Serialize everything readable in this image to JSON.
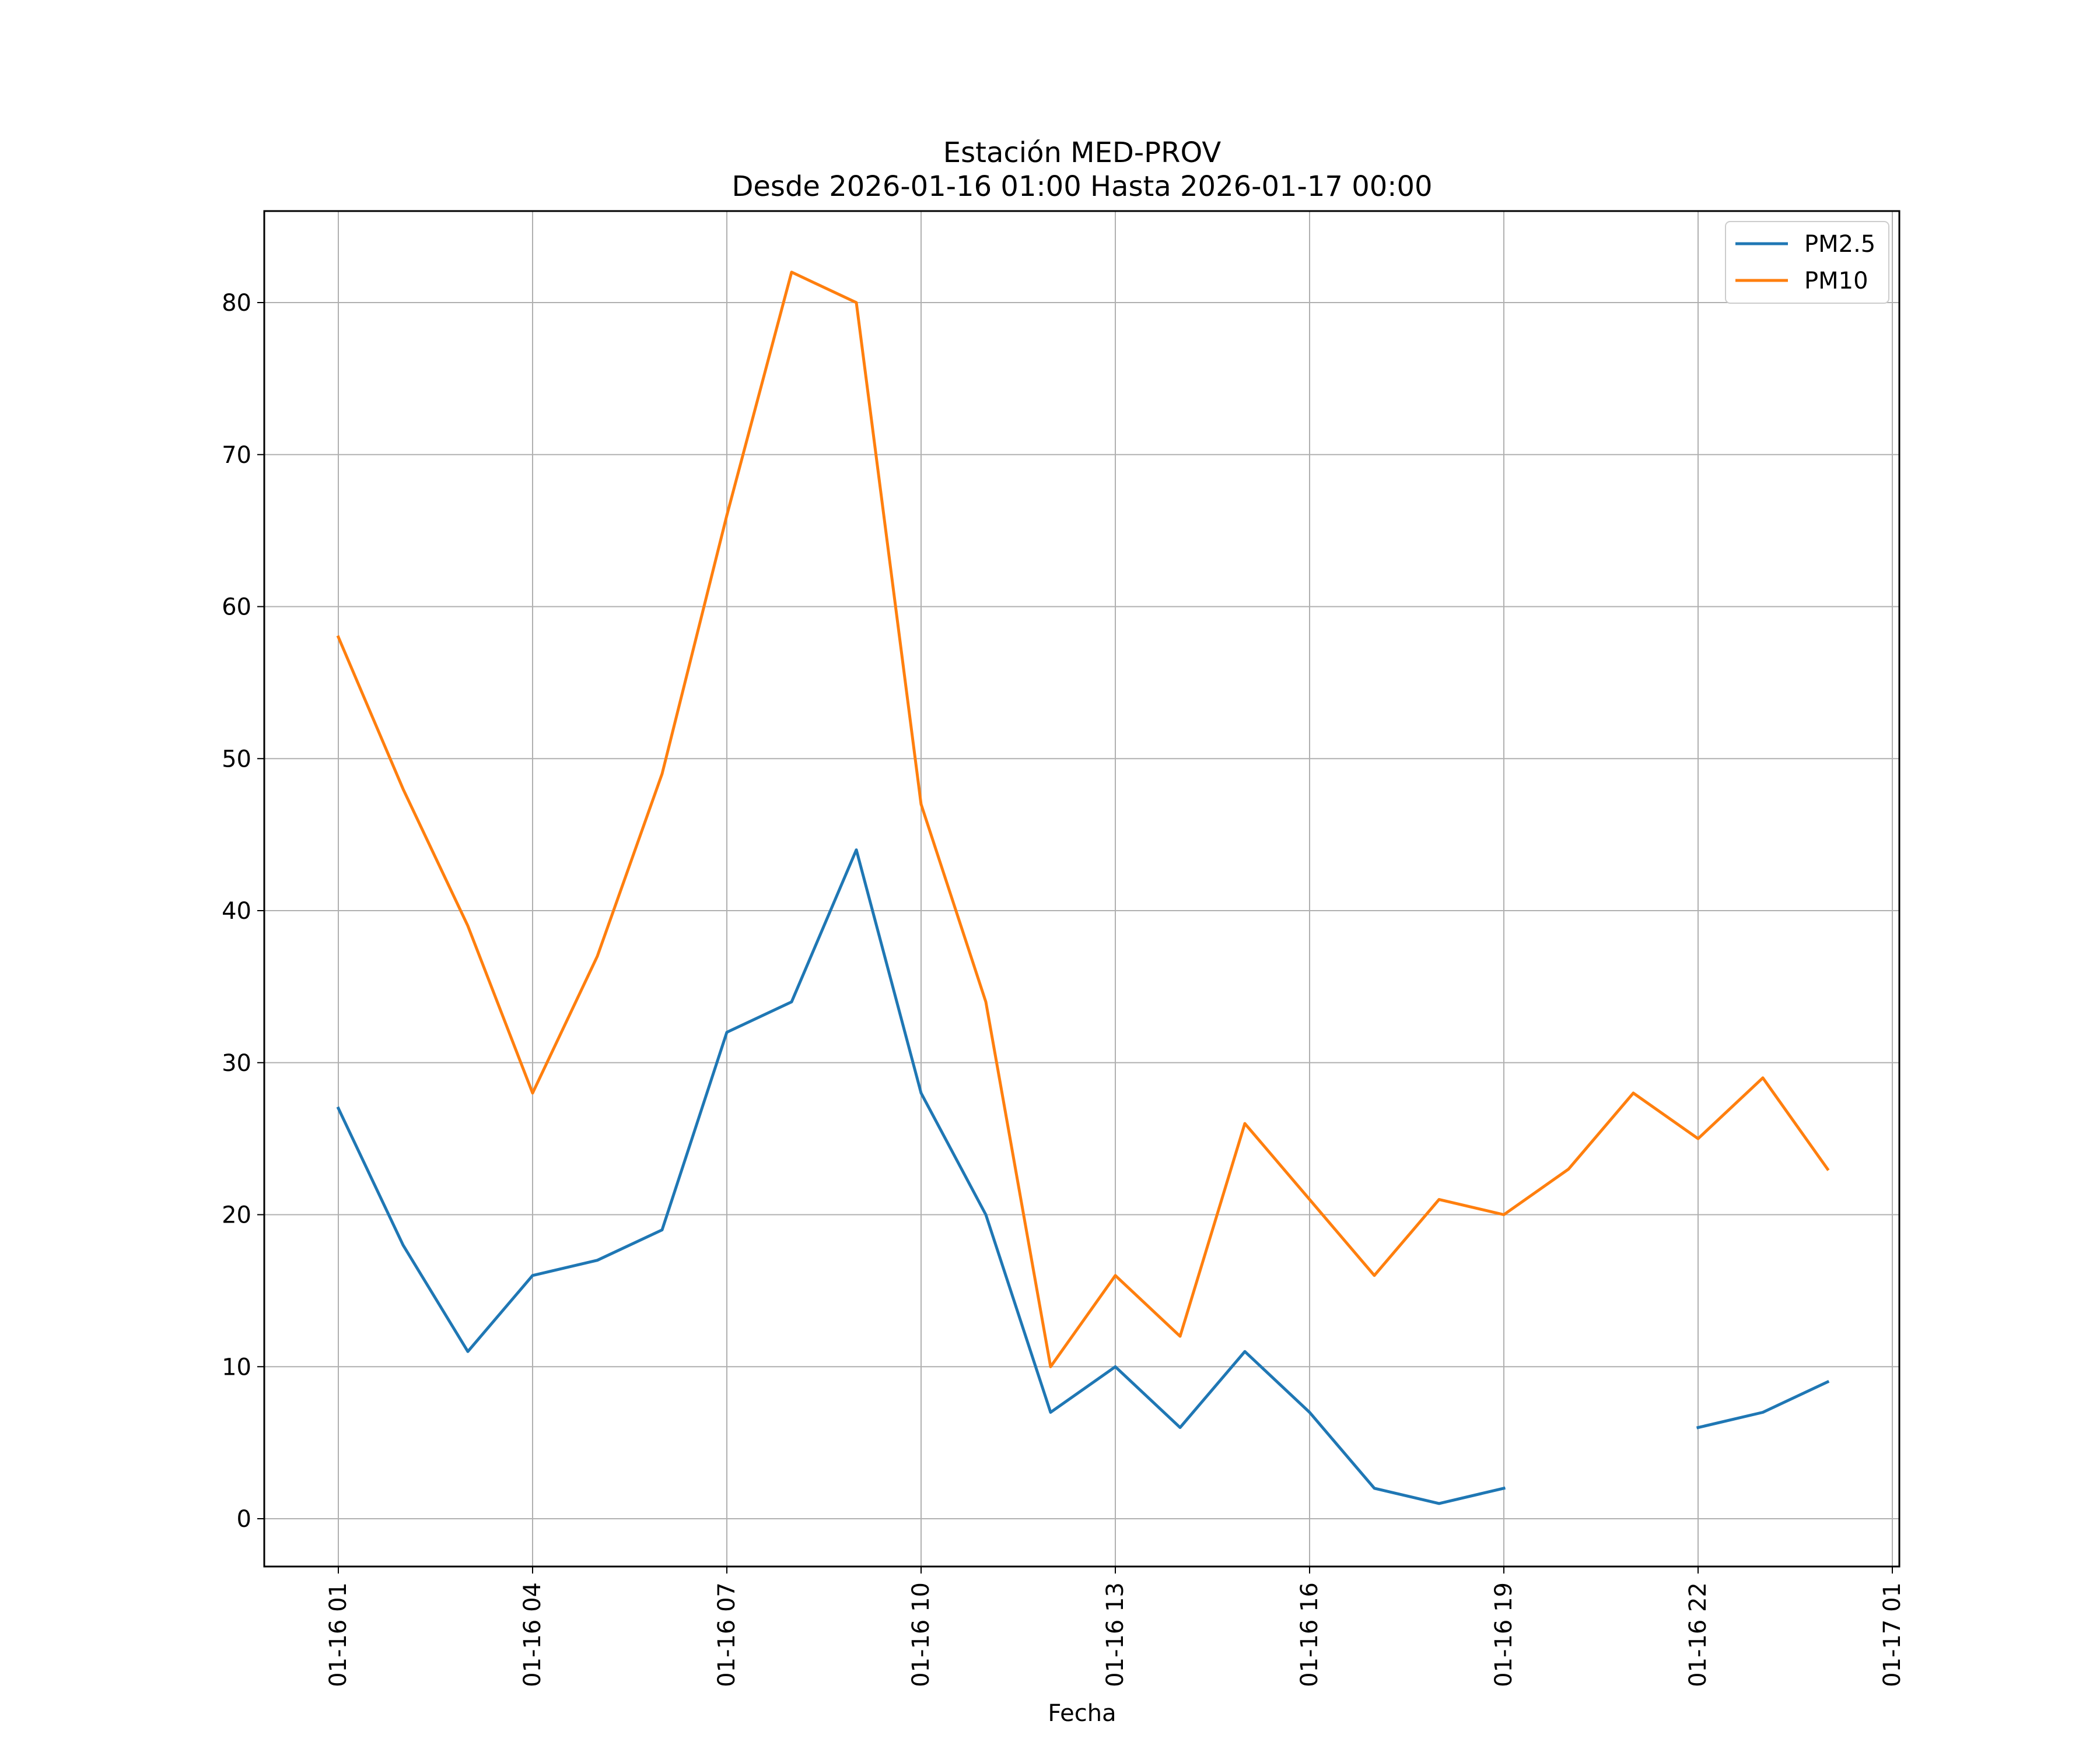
{
  "chart_data": {
    "type": "line",
    "title": "Estación MED-PROV",
    "subtitle": "Desde 2026-01-16 01:00 Hasta 2026-01-17 00:00",
    "xlabel": "Fecha",
    "ylabel": "",
    "x": [
      "01-16 01",
      "01-16 02",
      "01-16 03",
      "01-16 04",
      "01-16 05",
      "01-16 06",
      "01-16 07",
      "01-16 08",
      "01-16 09",
      "01-16 10",
      "01-16 11",
      "01-16 12",
      "01-16 13",
      "01-16 14",
      "01-16 15",
      "01-16 16",
      "01-16 17",
      "01-16 18",
      "01-16 19",
      "01-16 20",
      "01-16 21",
      "01-16 22",
      "01-16 23",
      "01-17 00"
    ],
    "x_ticks": [
      "01-16 01",
      "01-16 04",
      "01-16 07",
      "01-16 10",
      "01-16 13",
      "01-16 16",
      "01-16 19",
      "01-16 22",
      "01-17 01"
    ],
    "y_ticks": [
      0,
      10,
      20,
      30,
      40,
      50,
      60,
      70,
      80
    ],
    "ylim": [
      -3,
      86
    ],
    "grid": true,
    "legend_position": "top-right",
    "series": [
      {
        "name": "PM2.5",
        "color": "#1f77b4",
        "values": [
          27,
          18,
          11,
          16,
          17,
          19,
          32,
          34,
          44,
          28,
          20,
          7,
          10,
          6,
          11,
          7,
          2,
          1,
          2,
          null,
          null,
          6,
          7,
          9
        ]
      },
      {
        "name": "PM10",
        "color": "#ff7f0e",
        "values": [
          58,
          48,
          39,
          28,
          37,
          49,
          66,
          82,
          80,
          47,
          34,
          10,
          16,
          12,
          26,
          21,
          16,
          21,
          20,
          23,
          28,
          25,
          29,
          23
        ]
      }
    ]
  }
}
